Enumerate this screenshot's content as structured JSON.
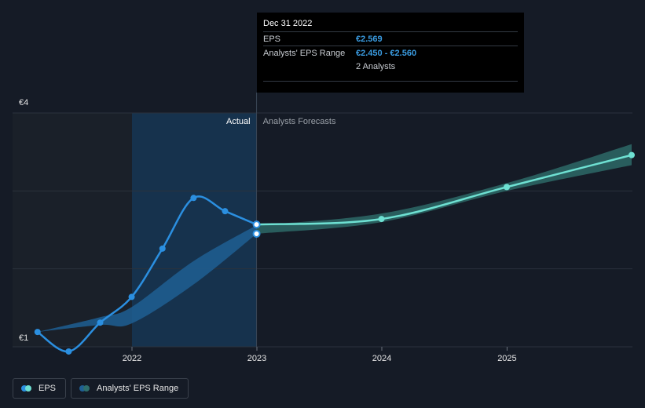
{
  "colors": {
    "actual_line": "#2b8fe0",
    "forecast_line": "#6ee0d2",
    "band_actual": "#1f5f93",
    "band_forecast": "#2e6e6c",
    "grid": "#2b323d",
    "highlight_region": "#16324d",
    "past_region": "#1a2029"
  },
  "tooltip": {
    "title": "Dec 31 2022",
    "rows": [
      {
        "key": "EPS",
        "value": "€2.569"
      },
      {
        "key": "Analysts' EPS Range",
        "value": "€2.450 - €2.560"
      },
      {
        "key": "",
        "value": "2 Analysts"
      }
    ]
  },
  "legend": {
    "eps_label": "EPS",
    "range_label": "Analysts' EPS Range"
  },
  "chart_data": {
    "type": "line",
    "x_ticks": [
      "2022",
      "2023",
      "2024",
      "2025"
    ],
    "y_ticks": [
      "€4",
      "€1"
    ],
    "ylim": [
      1,
      4
    ],
    "xlim": [
      "2021-03-31",
      "2025-12-31"
    ],
    "region_labels": {
      "actual": "Actual",
      "forecast": "Analysts Forecasts"
    },
    "actual_start": "2022-01-01",
    "divider": "2022-12-31",
    "series": [
      {
        "name": "EPS",
        "points": [
          {
            "x": "2021-03-31",
            "y": 1.19
          },
          {
            "x": "2021-06-30",
            "y": 0.94
          },
          {
            "x": "2021-09-30",
            "y": 1.31
          },
          {
            "x": "2021-12-31",
            "y": 1.64
          },
          {
            "x": "2022-03-31",
            "y": 2.26
          },
          {
            "x": "2022-06-30",
            "y": 2.91
          },
          {
            "x": "2022-09-30",
            "y": 2.74
          },
          {
            "x": "2022-12-31",
            "y": 2.569
          }
        ]
      },
      {
        "name": "EPS Forecast",
        "points": [
          {
            "x": "2022-12-31",
            "y": 2.569
          },
          {
            "x": "2023-12-31",
            "y": 2.64
          },
          {
            "x": "2024-12-31",
            "y": 3.05
          },
          {
            "x": "2025-12-31",
            "y": 3.46
          }
        ]
      }
    ],
    "range": [
      {
        "x": "2021-03-31",
        "low": 1.19,
        "high": 1.19
      },
      {
        "x": "2021-09-30",
        "low": 1.28,
        "high": 1.38
      },
      {
        "x": "2021-12-31",
        "low": 1.3,
        "high": 1.51
      },
      {
        "x": "2022-06-30",
        "low": 1.8,
        "high": 2.1
      },
      {
        "x": "2022-12-31",
        "low": 2.45,
        "high": 2.56
      },
      {
        "x": "2023-12-31",
        "low": 2.6,
        "high": 2.71
      },
      {
        "x": "2024-12-31",
        "low": 3.0,
        "high": 3.1
      },
      {
        "x": "2025-12-31",
        "low": 3.33,
        "high": 3.6
      }
    ],
    "range_markers": [
      {
        "x": "2022-12-31",
        "y": 2.45
      }
    ],
    "grid": true
  }
}
